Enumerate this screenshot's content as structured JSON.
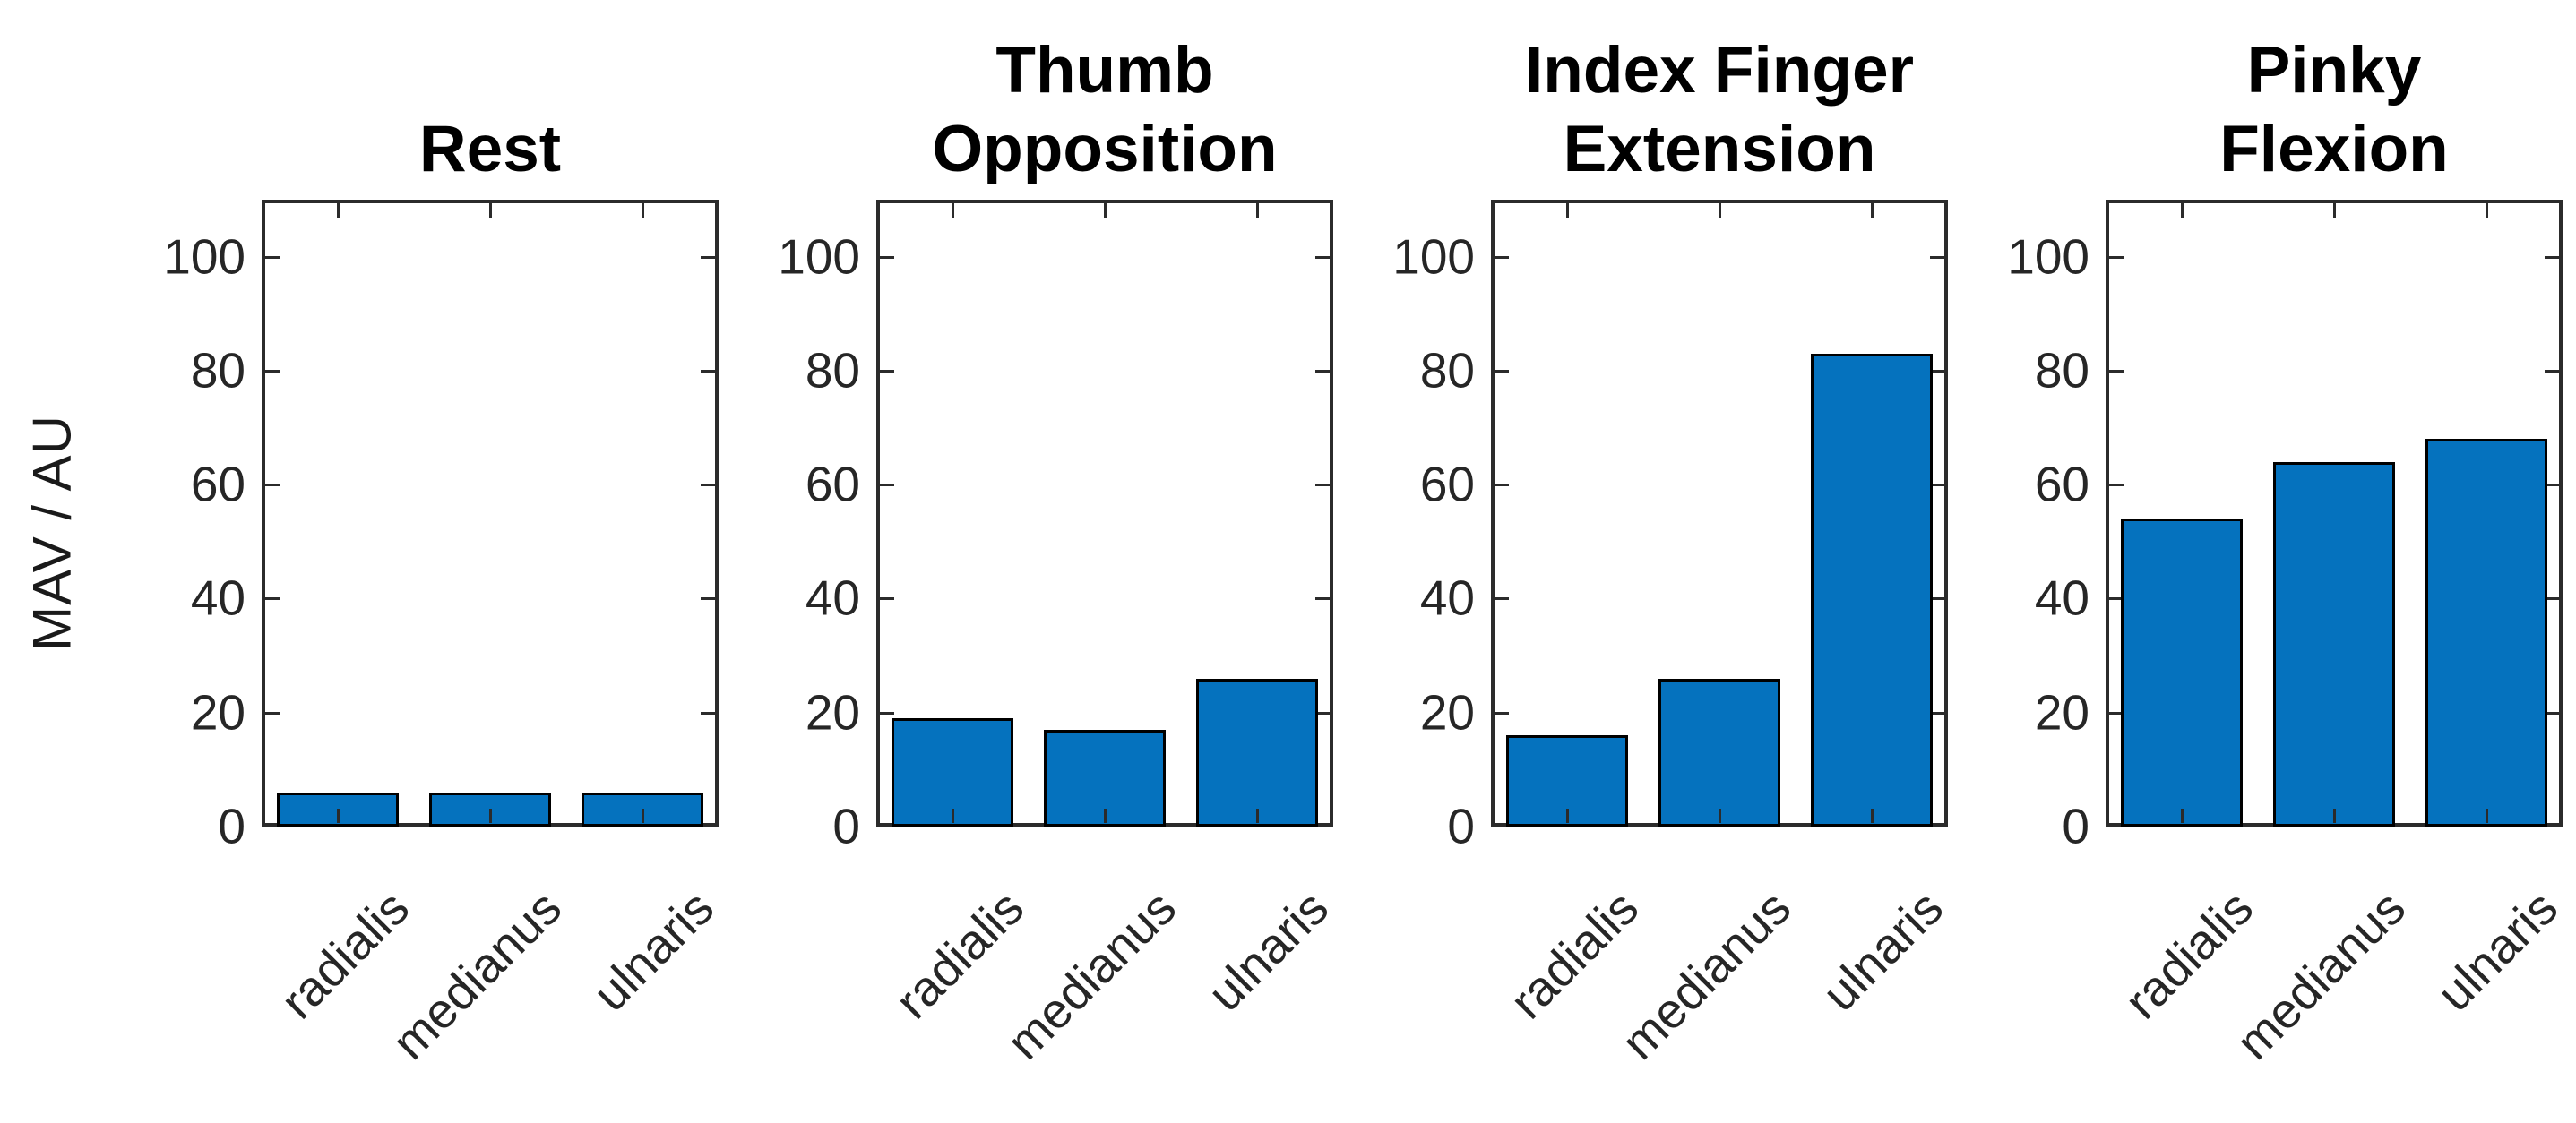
{
  "figure": {
    "ylabel": "MAV / AU",
    "background": "#ffffff",
    "axis_color": "#2b2b2b",
    "tick_label_color": "#262626",
    "bar_fill_color": "#0572be",
    "bar_edge_color": "#000000"
  },
  "chart_data": [
    {
      "type": "bar",
      "title": "Rest",
      "title_lines": [
        "Rest"
      ],
      "categories": [
        "radialis",
        "medianus",
        "ulnaris"
      ],
      "values": [
        6,
        6,
        6
      ],
      "ylabel": "MAV / AU",
      "xlabel": "",
      "ylim": [
        0,
        110
      ],
      "yticks": [
        0,
        20,
        40,
        60,
        80,
        100
      ],
      "grid": false,
      "legend_position": "none"
    },
    {
      "type": "bar",
      "title": "Thumb Opposition",
      "title_lines": [
        "Thumb",
        "Opposition"
      ],
      "categories": [
        "radialis",
        "medianus",
        "ulnaris"
      ],
      "values": [
        19,
        17,
        26
      ],
      "ylabel": "",
      "xlabel": "",
      "ylim": [
        0,
        110
      ],
      "yticks": [
        0,
        20,
        40,
        60,
        80,
        100
      ],
      "grid": false,
      "legend_position": "none"
    },
    {
      "type": "bar",
      "title": "Index Finger Extension",
      "title_lines": [
        "Index Finger",
        "Extension"
      ],
      "categories": [
        "radialis",
        "medianus",
        "ulnaris"
      ],
      "values": [
        16,
        26,
        83
      ],
      "ylabel": "",
      "xlabel": "",
      "ylim": [
        0,
        110
      ],
      "yticks": [
        0,
        20,
        40,
        60,
        80,
        100
      ],
      "grid": false,
      "legend_position": "none"
    },
    {
      "type": "bar",
      "title": "Pinky Flexion",
      "title_lines": [
        "Pinky",
        "Flexion"
      ],
      "categories": [
        "radialis",
        "medianus",
        "ulnaris"
      ],
      "values": [
        54,
        64,
        68
      ],
      "ylabel": "",
      "xlabel": "",
      "ylim": [
        0,
        110
      ],
      "yticks": [
        0,
        20,
        40,
        60,
        80,
        100
      ],
      "grid": false,
      "legend_position": "none"
    }
  ]
}
